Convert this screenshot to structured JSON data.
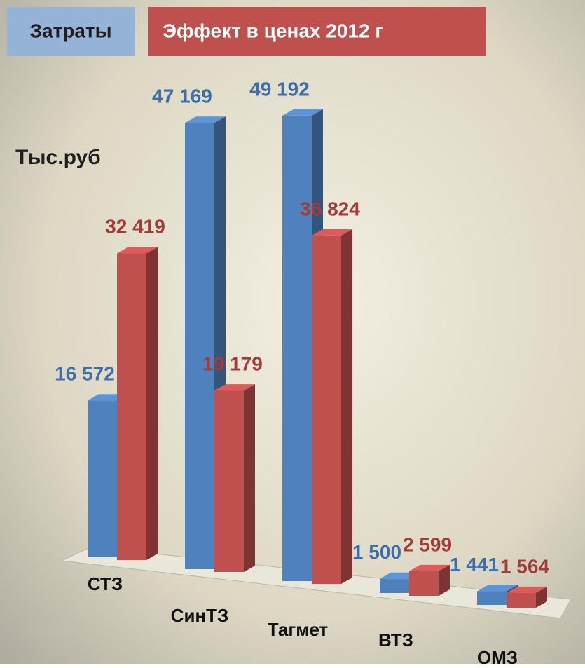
{
  "chart_data": {
    "type": "bar3d",
    "y_label": "Тыс.руб",
    "categories": [
      "СТЗ",
      "СинТЗ",
      "Тагмет",
      "ВТЗ",
      "ОМЗ"
    ],
    "series": [
      {
        "name": "Затраты",
        "color": "#4f81bd",
        "values": [
          16572,
          47169,
          49192,
          1500,
          1441
        ],
        "value_labels": [
          "16 572",
          "47 169",
          "49 192",
          "1 500",
          "1 441"
        ]
      },
      {
        "name": "Эффект в ценах 2012 г",
        "color": "#c0504d",
        "values": [
          32419,
          19179,
          36824,
          2599,
          1564
        ],
        "value_labels": [
          "32 419",
          "19 179",
          "36 824",
          "2 599",
          "1 564"
        ]
      }
    ],
    "ylim": [
      0,
      50000
    ]
  }
}
